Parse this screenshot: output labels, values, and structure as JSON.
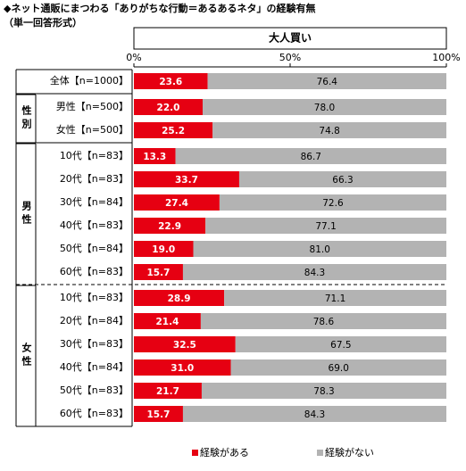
{
  "chart_data": {
    "type": "stacked-bar-100",
    "title": "◆ネット通販にまつわる「ありがちな行動＝あるあるネタ」の経験有無",
    "subtitle": "（単一回答形式）",
    "panel_title": "大人買い",
    "categories": [
      "全体【n=1000】",
      "男性【n=500】",
      "女性【n=500】",
      "10代【n=83】",
      "20代【n=83】",
      "30代【n=84】",
      "40代【n=83】",
      "50代【n=84】",
      "60代【n=83】",
      "10代【n=83】",
      "20代【n=84】",
      "30代【n=83】",
      "40代【n=84】",
      "50代【n=83】",
      "60代【n=83】"
    ],
    "category_groups": [
      null,
      "性別",
      "性別",
      "男性",
      "男性",
      "男性",
      "男性",
      "男性",
      "男性",
      "女性",
      "女性",
      "女性",
      "女性",
      "女性",
      "女性"
    ],
    "series": [
      {
        "name": "経験がある",
        "color": "#e60012",
        "values": [
          23.6,
          22.0,
          25.2,
          13.3,
          33.7,
          27.4,
          22.9,
          19.0,
          15.7,
          28.9,
          21.4,
          32.5,
          31.0,
          21.7,
          15.7
        ],
        "value_labels": [
          "23.6",
          "22.0",
          "25.2",
          "13.3",
          "33.7",
          "27.4",
          "22.9",
          "19.0",
          "15.7",
          "28.9",
          "21.4",
          "32.5",
          "31.0",
          "21.7",
          "15.7"
        ]
      },
      {
        "name": "経験がない",
        "color": "#b3b3b3",
        "values": [
          76.4,
          78.0,
          74.8,
          86.7,
          66.3,
          72.6,
          77.1,
          81.0,
          84.3,
          71.1,
          78.6,
          67.5,
          69.0,
          78.3,
          84.3
        ],
        "value_labels": [
          "76.4",
          "78.0",
          "74.8",
          "86.7",
          "66.3",
          "72.6",
          "77.1",
          "81.0",
          "84.3",
          "71.1",
          "78.6",
          "67.5",
          "69.0",
          "78.3",
          "84.3"
        ]
      }
    ],
    "xlim": [
      0,
      100
    ],
    "xticks": [
      {
        "value": 0,
        "label": "0%"
      },
      {
        "value": 50,
        "label": "50%"
      },
      {
        "value": 100,
        "label": "100%"
      }
    ],
    "legend": "bottom"
  }
}
